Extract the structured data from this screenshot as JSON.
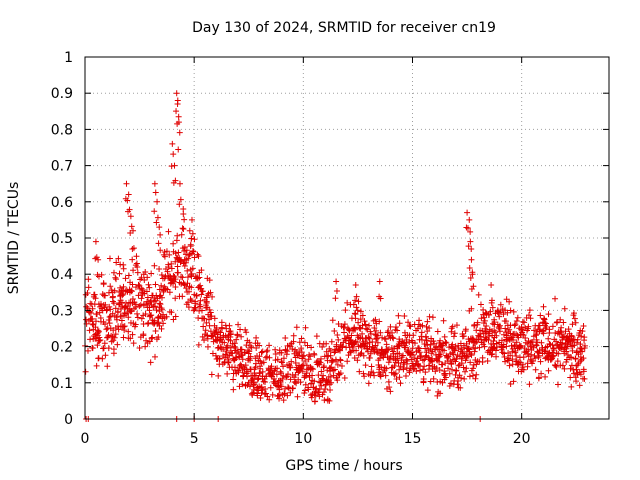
{
  "chart_data": {
    "type": "scatter",
    "title": "Day 130 of 2024, SRMTID for receiver cn19",
    "xlabel": "GPS time / hours",
    "ylabel": "SRMTID / TECUs",
    "xlim": [
      0,
      24
    ],
    "ylim": [
      0,
      1
    ],
    "grid": true,
    "marker": "+",
    "color": "#e00000",
    "x_ticks": [
      0,
      5,
      10,
      15,
      20
    ],
    "x_tick_labels": [
      "0",
      "5",
      "10",
      "15",
      "20"
    ],
    "y_ticks": [
      0,
      0.1,
      0.2,
      0.3,
      0.4,
      0.5,
      0.6,
      0.7,
      0.8,
      0.9,
      1
    ],
    "y_tick_labels": [
      "0",
      "0.1",
      "0.2",
      "0.3",
      "0.4",
      "0.5",
      "0.6",
      "0.7",
      "0.8",
      "0.9",
      "1"
    ],
    "series": [
      {
        "name": "cn19",
        "trend": [
          [
            0.0,
            0.27
          ],
          [
            0.5,
            0.26
          ],
          [
            1.0,
            0.28
          ],
          [
            1.5,
            0.3
          ],
          [
            2.0,
            0.33
          ],
          [
            2.5,
            0.33
          ],
          [
            3.0,
            0.3
          ],
          [
            3.5,
            0.33
          ],
          [
            4.0,
            0.4
          ],
          [
            4.5,
            0.42
          ],
          [
            5.0,
            0.38
          ],
          [
            5.5,
            0.3
          ],
          [
            6.0,
            0.22
          ],
          [
            6.5,
            0.18
          ],
          [
            7.0,
            0.16
          ],
          [
            7.5,
            0.14
          ],
          [
            8.0,
            0.13
          ],
          [
            8.5,
            0.12
          ],
          [
            9.0,
            0.12
          ],
          [
            9.5,
            0.14
          ],
          [
            10.0,
            0.15
          ],
          [
            10.5,
            0.12
          ],
          [
            11.0,
            0.12
          ],
          [
            11.5,
            0.17
          ],
          [
            12.0,
            0.24
          ],
          [
            12.5,
            0.23
          ],
          [
            13.0,
            0.2
          ],
          [
            13.5,
            0.18
          ],
          [
            14.0,
            0.17
          ],
          [
            14.5,
            0.18
          ],
          [
            15.0,
            0.19
          ],
          [
            15.5,
            0.19
          ],
          [
            16.0,
            0.17
          ],
          [
            16.5,
            0.17
          ],
          [
            17.0,
            0.16
          ],
          [
            17.5,
            0.18
          ],
          [
            18.0,
            0.24
          ],
          [
            18.5,
            0.25
          ],
          [
            19.0,
            0.24
          ],
          [
            19.5,
            0.22
          ],
          [
            20.0,
            0.2
          ],
          [
            20.5,
            0.19
          ],
          [
            21.0,
            0.2
          ],
          [
            21.5,
            0.21
          ],
          [
            22.0,
            0.2
          ],
          [
            22.5,
            0.19
          ],
          [
            22.9,
            0.19
          ]
        ],
        "spikes": [
          [
            0.5,
            0.49
          ],
          [
            0.6,
            0.44
          ],
          [
            1.9,
            0.65
          ],
          [
            2.0,
            0.62
          ],
          [
            2.1,
            0.56
          ],
          [
            2.2,
            0.52
          ],
          [
            3.2,
            0.65
          ],
          [
            3.3,
            0.6
          ],
          [
            3.4,
            0.53
          ],
          [
            4.0,
            0.76
          ],
          [
            4.1,
            0.7
          ],
          [
            4.2,
            0.9
          ],
          [
            4.25,
            0.88
          ],
          [
            4.3,
            0.82
          ],
          [
            4.35,
            0.65
          ],
          [
            4.5,
            0.58
          ],
          [
            4.8,
            0.52
          ],
          [
            4.9,
            0.55
          ],
          [
            5.2,
            0.45
          ],
          [
            11.5,
            0.38
          ],
          [
            12.4,
            0.37
          ],
          [
            13.5,
            0.38
          ],
          [
            17.5,
            0.57
          ],
          [
            17.6,
            0.55
          ],
          [
            17.65,
            0.49
          ],
          [
            17.7,
            0.44
          ],
          [
            17.75,
            0.4
          ],
          [
            18.6,
            0.37
          ],
          [
            21.0,
            0.31
          ]
        ],
        "zeros": [
          0.05,
          0.15,
          4.2,
          5.0,
          6.1,
          18.1
        ]
      }
    ]
  }
}
